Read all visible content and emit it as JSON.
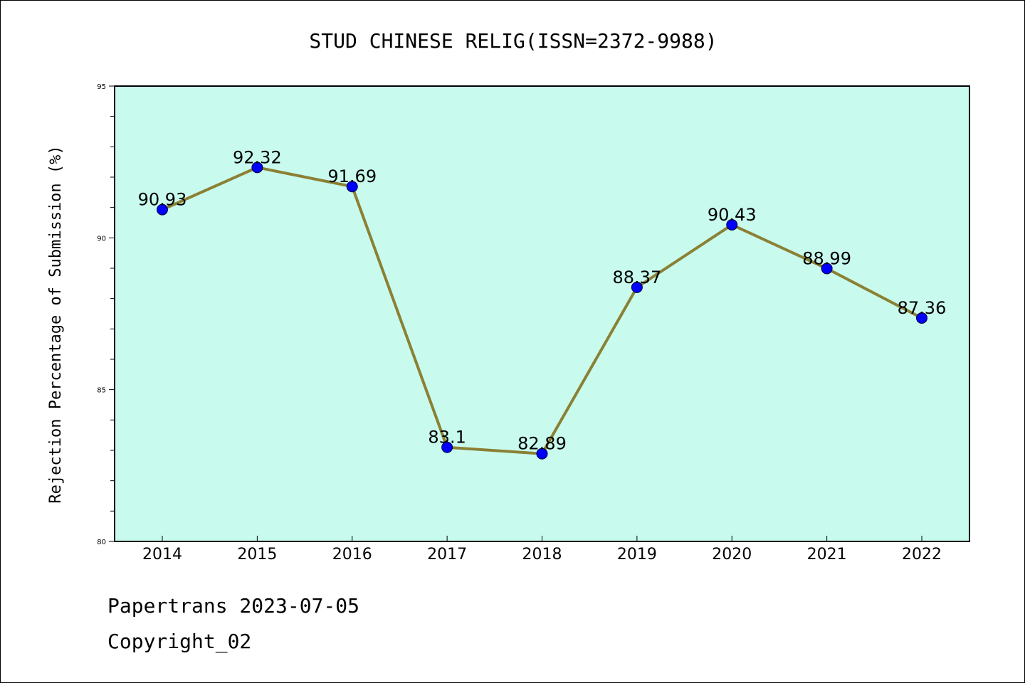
{
  "chart_data": {
    "type": "line",
    "title": "STUD CHINESE RELIG(ISSN=2372-9988)",
    "xlabel": "",
    "ylabel": "Rejection Percentage of Submission (%)",
    "categories": [
      "2014",
      "2015",
      "2016",
      "2017",
      "2018",
      "2019",
      "2020",
      "2021",
      "2022"
    ],
    "values": [
      90.93,
      92.32,
      91.69,
      83.1,
      82.89,
      88.37,
      90.43,
      88.99,
      87.36
    ],
    "data_labels": [
      "90.93",
      "92.32",
      "91.69",
      "83.1",
      "82.89",
      "88.37",
      "90.43",
      "88.99",
      "87.36"
    ],
    "ylim": [
      80,
      95
    ],
    "yticks": [
      "80",
      "85",
      "90",
      "95"
    ],
    "grid": false,
    "colors": {
      "plot_background": "#c8fbee",
      "line": "#8b8034",
      "marker": "#0000ff"
    }
  },
  "footer": {
    "line1": "Papertrans 2023-07-05",
    "line2": "Copyright_02"
  }
}
